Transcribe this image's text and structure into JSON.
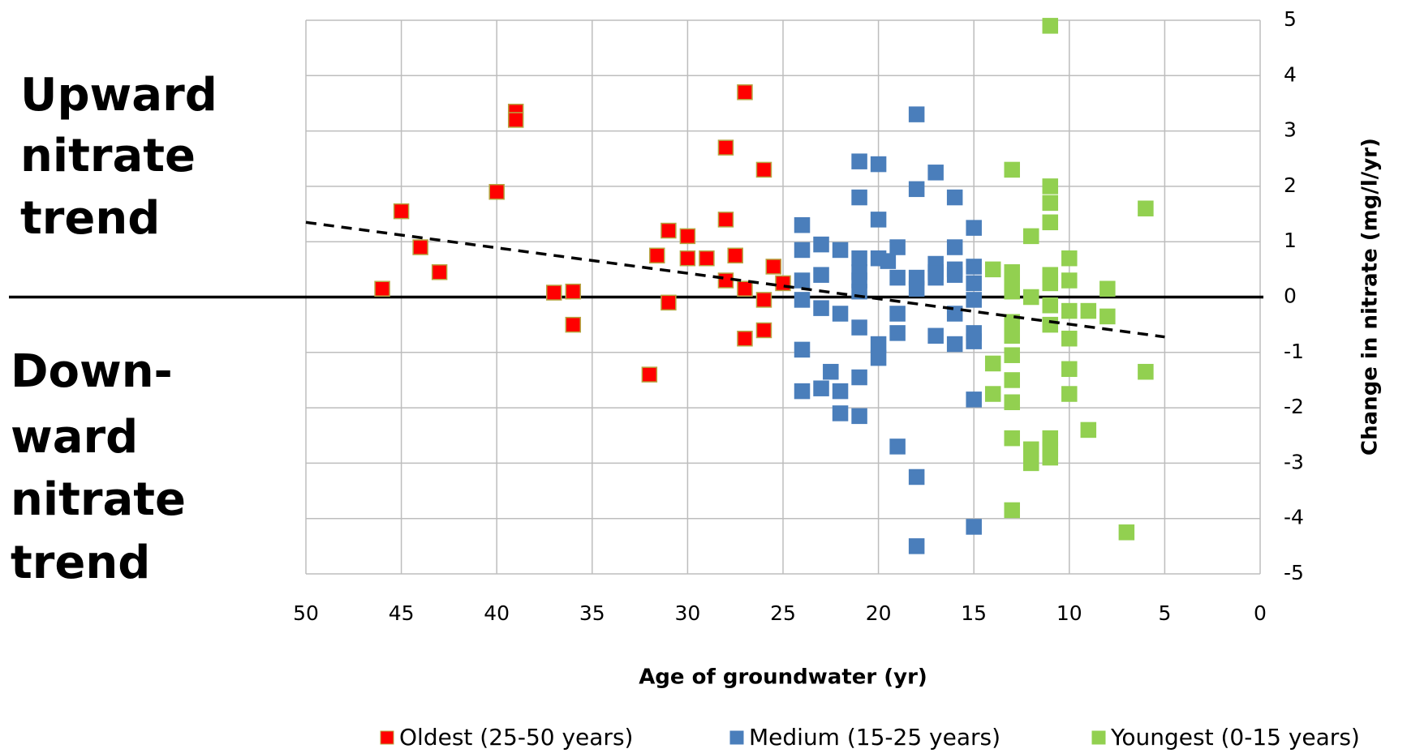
{
  "chart_data": {
    "type": "scatter",
    "x_label": "Age of groundwater  (yr)",
    "y_label": "Change in nitrate (mg/l/yr)",
    "annotations": [
      [
        "Upward",
        "nitrate",
        "trend"
      ],
      [
        "Down-",
        "ward",
        "nitrate",
        "trend"
      ]
    ],
    "xlim": [
      50,
      0
    ],
    "xticks": [
      50,
      45,
      40,
      35,
      30,
      25,
      20,
      15,
      10,
      5,
      0
    ],
    "ylim": [
      -5,
      5
    ],
    "yticks": [
      -5,
      -4,
      -3,
      -2,
      -1,
      0,
      1,
      2,
      3,
      4,
      5
    ],
    "grid": true,
    "legend": "bottom",
    "hline": 0,
    "trendline": {
      "x": [
        50,
        5
      ],
      "y": [
        1.35,
        -0.72
      ]
    },
    "series": [
      {
        "name": "Oldest (25-50 years)",
        "color": "#ff0000",
        "edge": "#b5a642",
        "x": [
          46,
          45,
          44,
          43,
          40,
          39,
          39,
          37,
          36,
          36,
          32,
          31.6,
          31,
          31,
          30,
          30,
          29,
          28,
          28,
          28,
          27.5,
          27,
          27,
          27,
          26,
          26,
          26,
          25.5,
          25
        ],
        "y": [
          0.15,
          1.55,
          0.9,
          0.45,
          1.9,
          3.35,
          3.2,
          0.08,
          0.1,
          -0.5,
          -1.4,
          0.75,
          1.2,
          -0.1,
          1.1,
          0.7,
          0.7,
          2.7,
          1.4,
          0.3,
          0.75,
          3.7,
          0.15,
          -0.75,
          2.3,
          -0.05,
          -0.6,
          0.55,
          0.25
        ]
      },
      {
        "name": "Medium (15-25 years)",
        "color": "#4a7ebb",
        "edge": "#4a7ebb",
        "x": [
          24,
          24,
          24,
          24,
          24,
          24,
          23,
          23,
          23,
          23,
          22.5,
          22,
          22,
          22,
          22,
          21,
          21,
          21,
          21,
          21,
          21,
          21,
          21,
          21,
          20,
          20,
          20,
          20,
          20,
          19.5,
          19,
          19,
          19,
          19,
          19,
          18,
          18,
          18,
          18,
          18,
          18,
          17,
          17,
          17,
          17,
          17,
          16,
          16,
          16,
          16,
          16,
          16,
          15,
          15,
          15,
          15,
          15,
          15,
          15,
          15
        ],
        "y": [
          1.3,
          0.85,
          0.3,
          -0.05,
          -0.95,
          -1.7,
          0.95,
          0.4,
          -0.2,
          -1.65,
          -1.35,
          0.85,
          -0.3,
          -1.7,
          -2.1,
          2.45,
          1.8,
          0.7,
          0.45,
          0.3,
          0.1,
          -0.55,
          -1.45,
          -2.15,
          2.4,
          1.4,
          0.7,
          -0.85,
          -1.1,
          0.65,
          0.9,
          0.35,
          -0.3,
          -0.65,
          -2.7,
          3.3,
          1.95,
          0.35,
          0.15,
          -3.25,
          -4.5,
          2.25,
          0.6,
          0.45,
          0.35,
          -0.7,
          1.8,
          0.9,
          0.5,
          0.4,
          -0.3,
          -0.85,
          1.25,
          0.55,
          0.25,
          -0.05,
          -0.65,
          -0.8,
          -1.85,
          -4.15
        ]
      },
      {
        "name": "Youngest (0-15 years)",
        "color": "#92d050",
        "edge": "#92d050",
        "x": [
          14,
          14,
          14,
          13,
          13,
          13,
          13,
          13,
          13,
          13,
          13,
          13,
          13,
          13,
          12,
          12,
          12,
          12,
          11,
          11,
          11,
          11,
          11,
          11,
          11,
          11,
          11,
          11,
          11,
          10,
          10,
          10,
          10,
          10,
          10,
          9,
          9,
          8,
          8,
          7,
          6,
          6
        ],
        "y": [
          0.5,
          -1.2,
          -1.75,
          2.3,
          0.45,
          0.25,
          0.1,
          -0.45,
          -0.7,
          -1.05,
          -1.5,
          -1.9,
          -2.55,
          -3.85,
          1.1,
          0,
          -2.75,
          -3.0,
          4.9,
          2.0,
          1.7,
          1.35,
          0.4,
          0.25,
          -0.15,
          -0.5,
          -2.55,
          -2.75,
          -2.9,
          0.7,
          0.3,
          -0.25,
          -0.75,
          -1.3,
          -1.75,
          -0.25,
          -2.4,
          0.15,
          -0.35,
          -4.25,
          1.6,
          -1.35
        ]
      }
    ]
  }
}
